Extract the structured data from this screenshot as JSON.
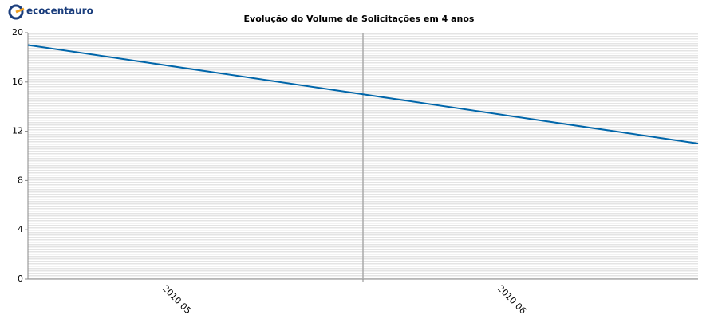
{
  "logo": "ecocentauro",
  "chart_data": {
    "type": "line",
    "title": "Evolução do Volume de Solicitações em 4 anos",
    "categories": [
      "2010 05",
      "2010 06",
      null
    ],
    "series": [
      {
        "color": "#0066aa",
        "values": [
          19,
          15,
          11
        ]
      }
    ],
    "ylim": [
      0,
      20
    ],
    "yticks": [
      0,
      4,
      8,
      12,
      16,
      20
    ],
    "grid": true
  }
}
